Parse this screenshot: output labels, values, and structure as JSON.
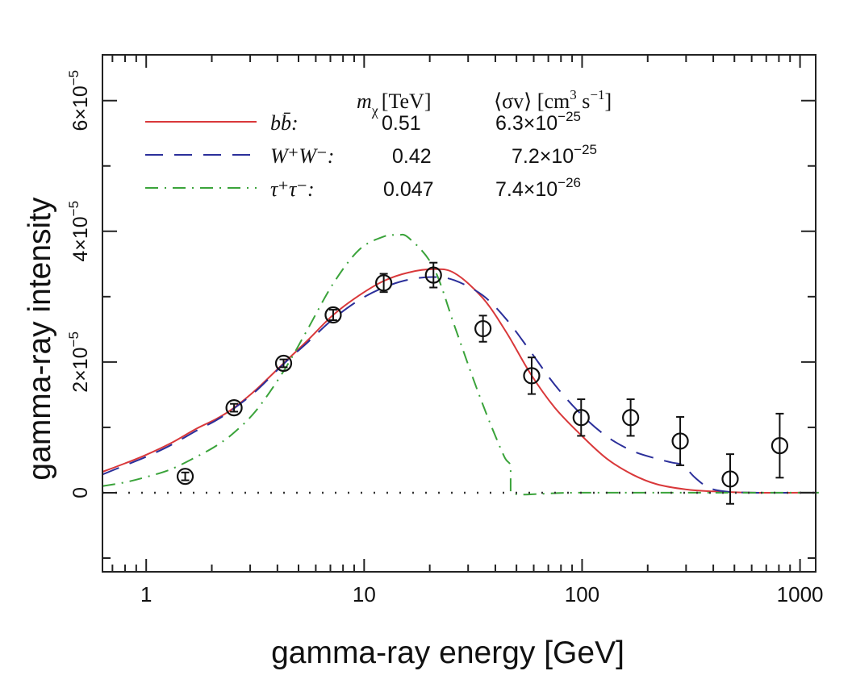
{
  "chart_data": {
    "type": "line",
    "title": "",
    "xlabel": "gamma-ray energy [GeV]",
    "ylabel": "gamma-ray intensity",
    "xscale": "log",
    "xlim": [
      0.63,
      1180
    ],
    "ylim": [
      -1.21e-05,
      6.7e-05
    ],
    "x_ticks": [
      {
        "value": 1,
        "label": "1"
      },
      {
        "value": 10,
        "label": "10"
      },
      {
        "value": 100,
        "label": "100"
      },
      {
        "value": 1000,
        "label": "1000"
      }
    ],
    "y_ticks": [
      {
        "value": 0,
        "mantissa": "0",
        "exponent": ""
      },
      {
        "value": 2e-05,
        "mantissa": "2×10",
        "exponent": "−5"
      },
      {
        "value": 4e-05,
        "mantissa": "4×10",
        "exponent": "−5"
      },
      {
        "value": 6e-05,
        "mantissa": "6×10",
        "exponent": "−5"
      }
    ],
    "y_minor_ticks": [
      -1e-05,
      1e-05,
      3e-05,
      5e-05
    ],
    "zero_line": "dotted",
    "grid": false,
    "legend": {
      "placement": "top-left",
      "header_mass": "m",
      "header_mass_sub": "χ",
      "header_mass_unit": "[TeV]",
      "header_sigma": "⟨σv⟩ [cm",
      "header_sigma_sup1": "3",
      "header_sigma_mid": " s",
      "header_sigma_sup2": "−1",
      "header_sigma_end": "]",
      "rows": [
        {
          "channel": "bb̄:",
          "mass": "0.51",
          "sigma_mantissa": "6.3×10",
          "sigma_exp": "−25"
        },
        {
          "channel": "W⁺W⁻:",
          "mass": "0.42",
          "sigma_mantissa": "7.2×10",
          "sigma_exp": "−25"
        },
        {
          "channel": "τ⁺τ⁻:",
          "mass": "0.047",
          "sigma_mantissa": "7.4×10",
          "sigma_exp": "−26"
        }
      ]
    },
    "series": [
      {
        "name": "bb̄ (m=0.51 TeV)",
        "style": "solid",
        "color": "#d9383a",
        "x": [
          0.63,
          0.8,
          1.0,
          1.3,
          1.7,
          2.1,
          2.53,
          3.2,
          4.27,
          5.5,
          7.21,
          9.5,
          12.3,
          16,
          20.8,
          26,
          35,
          45,
          58,
          75,
          99,
          130,
          170,
          220,
          300,
          400,
          600,
          1000,
          1180
        ],
        "y": [
          3.2e-06,
          4.5e-06,
          5.8e-06,
          7.6e-06,
          9.8e-06,
          1.13e-05,
          1.3e-05,
          1.58e-05,
          1.98e-05,
          2.33e-05,
          2.72e-05,
          3.02e-05,
          3.24e-05,
          3.37e-05,
          3.42e-05,
          3.36e-05,
          2.98e-05,
          2.45e-05,
          1.82e-05,
          1.3e-05,
          8.8e-06,
          5.2e-06,
          2.8e-06,
          1.3e-06,
          5e-07,
          2e-07,
          0.0,
          0.0,
          0.0
        ]
      },
      {
        "name": "W⁺W⁻ (m=0.42 TeV)",
        "style": "dashed",
        "color": "#2b2f9a",
        "x": [
          0.63,
          0.8,
          1.0,
          1.3,
          1.7,
          2.1,
          2.53,
          3.2,
          4.27,
          5.5,
          7.21,
          9.5,
          12.3,
          16,
          20.8,
          26,
          35,
          45,
          58,
          75,
          99,
          130,
          170,
          220,
          260,
          290,
          330,
          380,
          450,
          600,
          1000,
          1180
        ],
        "y": [
          2.8e-06,
          4.2e-06,
          5.5e-06,
          7.3e-06,
          9.5e-06,
          1.11e-05,
          1.29e-05,
          1.56e-05,
          1.97e-05,
          2.3e-05,
          2.66e-05,
          2.95e-05,
          3.14e-05,
          3.26e-05,
          3.3e-05,
          3.25e-05,
          3.02e-05,
          2.65e-05,
          2.16e-05,
          1.65e-05,
          1.2e-05,
          8.6e-06,
          6.4e-06,
          5.2e-06,
          4.6e-06,
          4.2e-06,
          2.3e-06,
          8e-07,
          2e-07,
          0.0,
          0.0,
          0.0
        ]
      },
      {
        "name": "τ⁺τ⁻ (m=0.047 TeV)",
        "style": "dashdot",
        "color": "#3aa33a",
        "x": [
          0.63,
          0.8,
          1.0,
          1.3,
          1.7,
          2.1,
          2.53,
          3.2,
          4.27,
          5.5,
          7.21,
          9.5,
          12.3,
          14.2,
          16,
          20.8,
          26,
          32,
          38,
          44,
          47,
          47.01,
          100,
          1000,
          1180
        ],
        "y": [
          1e-06,
          1.6e-06,
          2.4e-06,
          3.6e-06,
          5.5e-06,
          7.2e-06,
          9.2e-06,
          1.26e-05,
          1.86e-05,
          2.5e-05,
          3.2e-05,
          3.72e-05,
          3.92e-05,
          3.94e-05,
          3.9e-05,
          3.45e-05,
          2.55e-05,
          1.7e-05,
          1.05e-05,
          5.5e-06,
          4e-06,
          0.0,
          0.0,
          0.0,
          0.0
        ]
      }
    ],
    "data_points": {
      "name": "observed",
      "marker": "open-circle",
      "x": [
        1.51,
        2.53,
        4.27,
        7.21,
        12.3,
        20.8,
        35.1,
        58.7,
        99,
        167,
        282,
        478,
        807
      ],
      "y": [
        2.5e-06,
        1.3e-05,
        1.98e-05,
        2.72e-05,
        3.21e-05,
        3.33e-05,
        2.51e-05,
        1.79e-05,
        1.15e-05,
        1.15e-05,
        7.9e-06,
        2.1e-06,
        7.2e-06
      ],
      "err": [
        6e-07,
        6e-07,
        6e-07,
        8e-07,
        1.4e-06,
        1.9e-06,
        2e-06,
        2.8e-06,
        2.8e-06,
        2.8e-06,
        3.7e-06,
        3.8e-06,
        4.9e-06
      ]
    }
  }
}
